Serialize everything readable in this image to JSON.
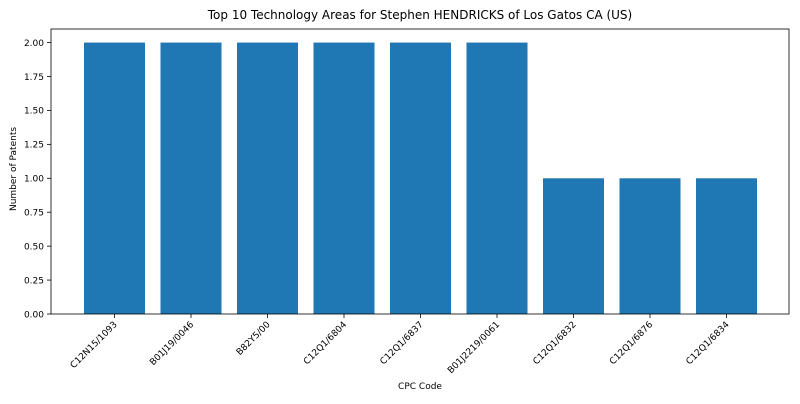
{
  "chart_data": {
    "type": "bar",
    "title": "Top 10 Technology Areas for Stephen HENDRICKS of Los Gatos CA (US)",
    "xlabel": "CPC Code",
    "ylabel": "Number of Patents",
    "categories": [
      "C12N15/1093",
      "B01J19/0046",
      "B82Y5/00",
      "C12Q1/6804",
      "C12Q1/6837",
      "B01J2219/0061",
      "C12Q1/6832",
      "C12Q1/6876",
      "C12Q1/6834"
    ],
    "values": [
      2,
      2,
      2,
      2,
      2,
      2,
      1,
      1,
      1
    ],
    "ylim": [
      0,
      2.1
    ],
    "yticks": [
      "0.00",
      "0.25",
      "0.50",
      "0.75",
      "1.00",
      "1.25",
      "1.50",
      "1.75",
      "2.00"
    ],
    "grid": false,
    "legend": "none",
    "bar_color": "#1f77b4"
  }
}
